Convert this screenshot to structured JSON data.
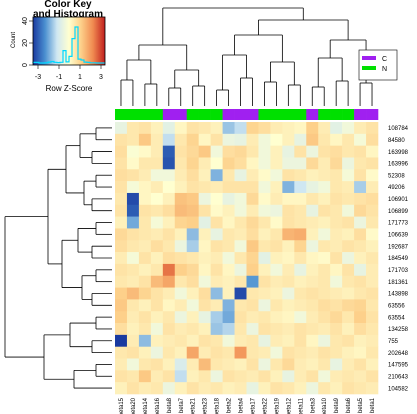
{
  "chart_data": {
    "type": "heatmap",
    "color_key": {
      "title_line1": "Color Key",
      "title_line2": "and Histogram",
      "ylabel": "Count",
      "xlabel": "Row Z-Score",
      "y_ticks": [
        "0",
        "20",
        "40"
      ],
      "x_ticks": [
        "-3",
        "-1",
        "1",
        "3"
      ],
      "range": [
        -3,
        3
      ],
      "colors": [
        "#1a3aa0",
        "#4a8fd0",
        "#cfe7f2",
        "#ffffd0",
        "#fdd08a",
        "#f08a50",
        "#c01e1e"
      ],
      "histogram_color": "#00d8ff"
    },
    "legend": [
      {
        "label": "C",
        "color": "#a020f0"
      },
      {
        "label": "N",
        "color": "#00e000"
      }
    ],
    "columns": [
      "beta15",
      "beta20",
      "beta14",
      "beta16",
      "beta8",
      "beta7",
      "beta21",
      "beta23",
      "beta18",
      "beta2",
      "beta4",
      "beta17",
      "beta22",
      "beta19",
      "beta12",
      "beta11",
      "beta3",
      "beta10",
      "beta9",
      "beta6",
      "beta5",
      "beta1"
    ],
    "column_groups": [
      "N",
      "N",
      "N",
      "N",
      "C",
      "C",
      "N",
      "N",
      "N",
      "C",
      "C",
      "C",
      "N",
      "N",
      "N",
      "N",
      "C",
      "N",
      "N",
      "N",
      "C",
      "C"
    ],
    "rows": [
      "108784",
      "84580",
      "163998",
      "163996",
      "52308",
      "49206",
      "106901",
      "106899",
      "171773",
      "106639",
      "192687",
      "184549",
      "171703",
      "181361",
      "143898",
      "63556",
      "63554",
      "134258",
      "755",
      "202648",
      "147595",
      "210643",
      "104582"
    ],
    "values": [
      [
        -0.5,
        0.5,
        0.6,
        0.3,
        -0.6,
        0.2,
        0.6,
        0.5,
        0.3,
        -1.4,
        -1.1,
        0.9,
        0.7,
        0.4,
        0.3,
        0.2,
        1.0,
        0.4,
        -0.6,
        -0.3,
        0.4,
        0.6
      ],
      [
        0.6,
        0.5,
        1.1,
        0.4,
        -1.1,
        0.5,
        0.9,
        0.2,
        0.6,
        -0.4,
        -0.5,
        0.4,
        -0.3,
        0.0,
        0.3,
        -0.5,
        1.1,
        0.5,
        0.2,
        0.5,
        -0.2,
        0.7
      ],
      [
        0.7,
        -0.1,
        0.1,
        0.4,
        -2.6,
        0.6,
        0.8,
        1.1,
        -0.3,
        0.7,
        0.8,
        0.5,
        -0.3,
        0.3,
        -0.5,
        0.6,
        -0.4,
        0.6,
        0.7,
        0.5,
        0.6,
        0.2
      ],
      [
        0.6,
        0.1,
        0.5,
        0.5,
        -2.7,
        0.5,
        0.9,
        0.4,
        0.0,
        0.9,
        0.7,
        0.2,
        -0.3,
        0.3,
        -0.4,
        -0.4,
        0.8,
        0.4,
        0.8,
        -0.4,
        0.5,
        0.6
      ],
      [
        0.7,
        0.6,
        0.4,
        -0.3,
        -0.3,
        0.4,
        0.7,
        0.3,
        -1.6,
        0.5,
        -0.5,
        0.4,
        0.1,
        -0.3,
        0.6,
        0.5,
        0.3,
        0.4,
        0.5,
        -0.2,
        0.6,
        0.1
      ],
      [
        0.6,
        -0.2,
        0.2,
        0.4,
        0.0,
        0.3,
        0.6,
        0.5,
        0.4,
        0.6,
        0.6,
        0.6,
        -0.3,
        0.3,
        -1.6,
        -1.0,
        -0.5,
        -0.3,
        0.5,
        0.4,
        -1.3,
        0.4
      ],
      [
        0.5,
        -2.8,
        0.2,
        0.0,
        0.3,
        1.2,
        1.1,
        -0.4,
        0.0,
        -0.5,
        -0.3,
        0.8,
        0.1,
        0.4,
        0.2,
        0.2,
        0.5,
        0.3,
        0.6,
        0.5,
        0.6,
        0.7
      ],
      [
        0.6,
        -2.6,
        0.6,
        0.5,
        0.7,
        1.3,
        1.2,
        0.6,
        0.1,
        0.3,
        -0.3,
        0.4,
        -0.3,
        -0.4,
        0.6,
        0.5,
        -0.5,
        0.6,
        0.5,
        -0.3,
        0.8,
        0.6
      ],
      [
        0.3,
        -1.7,
        0.5,
        -0.2,
        0.3,
        0.9,
        1.0,
        -0.6,
        0.6,
        0.2,
        0.5,
        0.8,
        0.5,
        0.1,
        0.6,
        0.5,
        0.4,
        0.3,
        0.5,
        0.6,
        -0.4,
        0.5
      ],
      [
        0.8,
        0.6,
        0.5,
        0.4,
        0.6,
        0.3,
        -1.5,
        0.3,
        -0.5,
        0.5,
        0.4,
        0.7,
        0.3,
        0.5,
        1.4,
        1.5,
        0.3,
        -0.3,
        0.4,
        0.3,
        0.7,
        0.1
      ],
      [
        0.7,
        0.5,
        0.4,
        0.7,
        0.5,
        -0.4,
        -1.3,
        0.2,
        0.6,
        0.5,
        -0.3,
        1.1,
        0.5,
        0.6,
        0.3,
        0.9,
        -0.4,
        0.5,
        0.4,
        0.6,
        0.5,
        0.3
      ],
      [
        0.4,
        -0.2,
        0.6,
        0.3,
        0.7,
        0.6,
        0.5,
        0.3,
        0.4,
        -0.3,
        0.5,
        0.9,
        -0.6,
        0.3,
        0.2,
        0.5,
        0.2,
        0.1,
        0.6,
        -0.4,
        0.3,
        0.5
      ],
      [
        0.6,
        0.5,
        0.3,
        0.5,
        2.2,
        1.0,
        0.8,
        0.2,
        0.6,
        0.2,
        -0.4,
        1.0,
        0.3,
        -0.3,
        0.4,
        -0.5,
        0.3,
        0.5,
        0.2,
        0.6,
        -0.5,
        0.4
      ],
      [
        0.5,
        0.4,
        0.6,
        1.3,
        1.6,
        0.5,
        0.7,
        -0.3,
        0.4,
        0.3,
        0.5,
        -1.9,
        0.6,
        0.4,
        0.5,
        0.3,
        0.4,
        0.5,
        -0.3,
        0.5,
        0.6,
        0.4
      ],
      [
        1.0,
        1.3,
        0.9,
        0.6,
        0.4,
        -0.3,
        0.3,
        0.7,
        -1.5,
        0.3,
        -2.8,
        0.5,
        0.4,
        0.3,
        -0.4,
        0.5,
        0.6,
        0.5,
        0.4,
        0.3,
        0.5,
        0.6
      ],
      [
        1.1,
        0.5,
        0.3,
        0.6,
        0.2,
        0.4,
        -0.3,
        0.6,
        0.4,
        -1.6,
        0.5,
        0.6,
        -0.4,
        0.5,
        0.3,
        0.4,
        0.5,
        0.7,
        0.6,
        0.8,
        0.9,
        0.5
      ],
      [
        1.0,
        0.4,
        0.6,
        0.3,
        0.5,
        -0.4,
        0.3,
        -0.5,
        -1.3,
        -1.7,
        0.6,
        0.4,
        0.5,
        0.3,
        0.2,
        -0.3,
        0.4,
        0.6,
        0.8,
        0.5,
        1.0,
        0.6
      ],
      [
        0.7,
        0.3,
        0.5,
        -0.3,
        0.6,
        0.4,
        0.5,
        0.3,
        -1.4,
        -1.2,
        0.5,
        -0.4,
        0.6,
        0.5,
        0.4,
        0.6,
        0.5,
        0.4,
        0.6,
        0.3,
        0.7,
        0.5
      ],
      [
        -3.0,
        0.4,
        -1.5,
        0.3,
        0.4,
        0.5,
        0.3,
        0.6,
        0.5,
        -0.3,
        0.4,
        0.5,
        -0.5,
        0.4,
        0.3,
        0.6,
        0.2,
        -0.4,
        0.5,
        0.6,
        0.3,
        0.4
      ],
      [
        0.5,
        0.6,
        0.3,
        -0.4,
        0.5,
        0.3,
        1.6,
        0.4,
        0.6,
        0.5,
        1.8,
        0.5,
        0.4,
        -0.3,
        0.6,
        0.5,
        0.4,
        0.6,
        0.5,
        0.3,
        0.2,
        0.5
      ],
      [
        0.4,
        -0.3,
        0.5,
        0.6,
        0.3,
        -0.8,
        0.4,
        1.3,
        0.5,
        0.4,
        0.3,
        0.6,
        -0.4,
        0.5,
        0.8,
        0.4,
        0.3,
        0.5,
        -0.5,
        0.4,
        0.6,
        0.3
      ],
      [
        0.6,
        0.5,
        1.1,
        0.4,
        0.6,
        -1.1,
        0.3,
        0.5,
        -0.4,
        0.6,
        0.5,
        0.4,
        0.6,
        0.3,
        -0.5,
        0.4,
        0.6,
        -0.3,
        0.4,
        0.5,
        0.4,
        0.6
      ],
      [
        0.3,
        0.6,
        0.4,
        0.5,
        -0.4,
        0.3,
        0.6,
        0.4,
        0.5,
        0.3,
        0.4,
        -0.5,
        0.3,
        0.6,
        0.5,
        0.3,
        -0.4,
        0.5,
        0.3,
        0.6,
        0.5,
        0.4
      ]
    ]
  }
}
